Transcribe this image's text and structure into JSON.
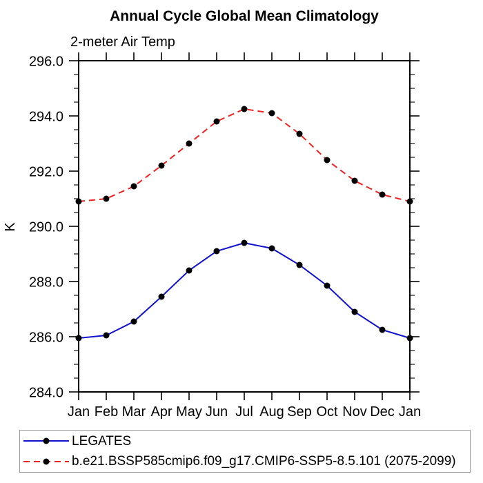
{
  "chart_data": {
    "type": "line",
    "title": "Annual Cycle Global Mean Climatology",
    "subtitle": "2-meter Air Temp",
    "ylabel": "K",
    "categories": [
      "Jan",
      "Feb",
      "Mar",
      "Apr",
      "May",
      "Jun",
      "Jul",
      "Aug",
      "Sep",
      "Oct",
      "Nov",
      "Dec",
      "Jan"
    ],
    "ylim": [
      284.0,
      296.0
    ],
    "ytick_values": [
      284.0,
      286.0,
      288.0,
      290.0,
      292.0,
      294.0,
      296.0
    ],
    "ytick_labels": [
      "284.0",
      "286.0",
      "288.0",
      "290.0",
      "292.0",
      "294.0",
      "296.0"
    ],
    "ytick_minor_step": 0.5,
    "grid": "off",
    "legend_position": "bottom-left",
    "legend_border_color": "#9a9a9a",
    "marker_color": "#000000",
    "axis_color": "#000000",
    "series": [
      {
        "name": "LEGATES",
        "color": "#1010d0",
        "style": "solid",
        "marker": "filled-circle",
        "values": [
          285.95,
          286.05,
          286.55,
          287.45,
          288.4,
          289.1,
          289.4,
          289.2,
          288.6,
          287.85,
          286.9,
          286.25,
          285.95
        ]
      },
      {
        "name": "b.e21.BSSP585cmip6.f09_g17.CMIP6-SSP5-8.5.101 (2075-2099)",
        "color": "#ee2222",
        "style": "dashed",
        "marker": "filled-circle",
        "values": [
          290.9,
          291.0,
          291.45,
          292.2,
          293.0,
          293.8,
          294.25,
          294.1,
          293.35,
          292.4,
          291.65,
          291.15,
          290.9
        ]
      }
    ]
  }
}
